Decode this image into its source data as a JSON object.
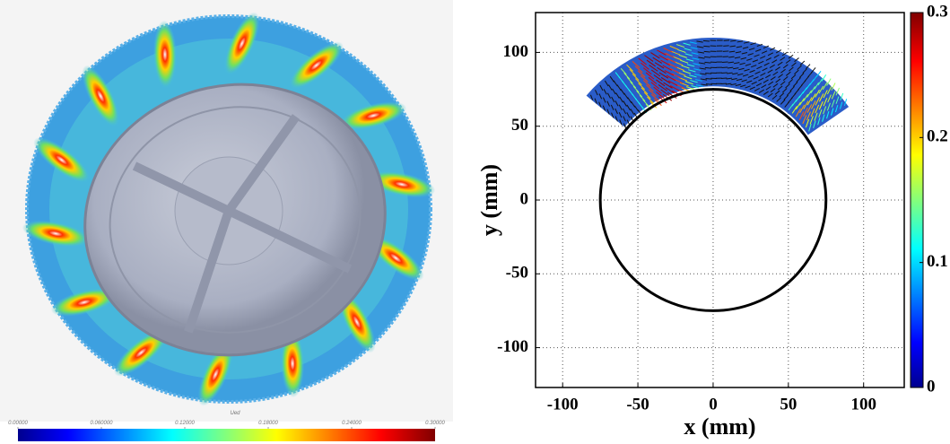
{
  "chart_data": [
    {
      "type": "contour",
      "colorbar_label": "Ued",
      "colorbar_lim": [
        0,
        0.3
      ],
      "colorbar_ticks": [
        {
          "value": 0,
          "label": "0.00000"
        },
        {
          "value": 0.06,
          "label": "0.060000"
        },
        {
          "value": 0.12,
          "label": "0.12000"
        },
        {
          "value": 0.18,
          "label": "0.18000"
        },
        {
          "value": 0.24,
          "label": "0.24000"
        },
        {
          "value": 0.3,
          "label": "0.30000"
        }
      ]
    },
    {
      "type": "quiver",
      "xlabel": "x (mm)",
      "ylabel": "y (mm)",
      "xlim": [
        -118,
        127
      ],
      "ylim": [
        -127,
        127
      ],
      "xticks": [
        -100,
        -50,
        0,
        50,
        100
      ],
      "yticks": [
        -100,
        -50,
        0,
        50,
        100
      ],
      "grid": true,
      "circle_radius": 75,
      "region": {
        "r": [
          77,
          110
        ],
        "theta": [
          35,
          140
        ]
      },
      "colorbar_lim": [
        0,
        0.3
      ],
      "colorbar_ticks": [
        0,
        0.1,
        0.2,
        0.3
      ]
    }
  ]
}
